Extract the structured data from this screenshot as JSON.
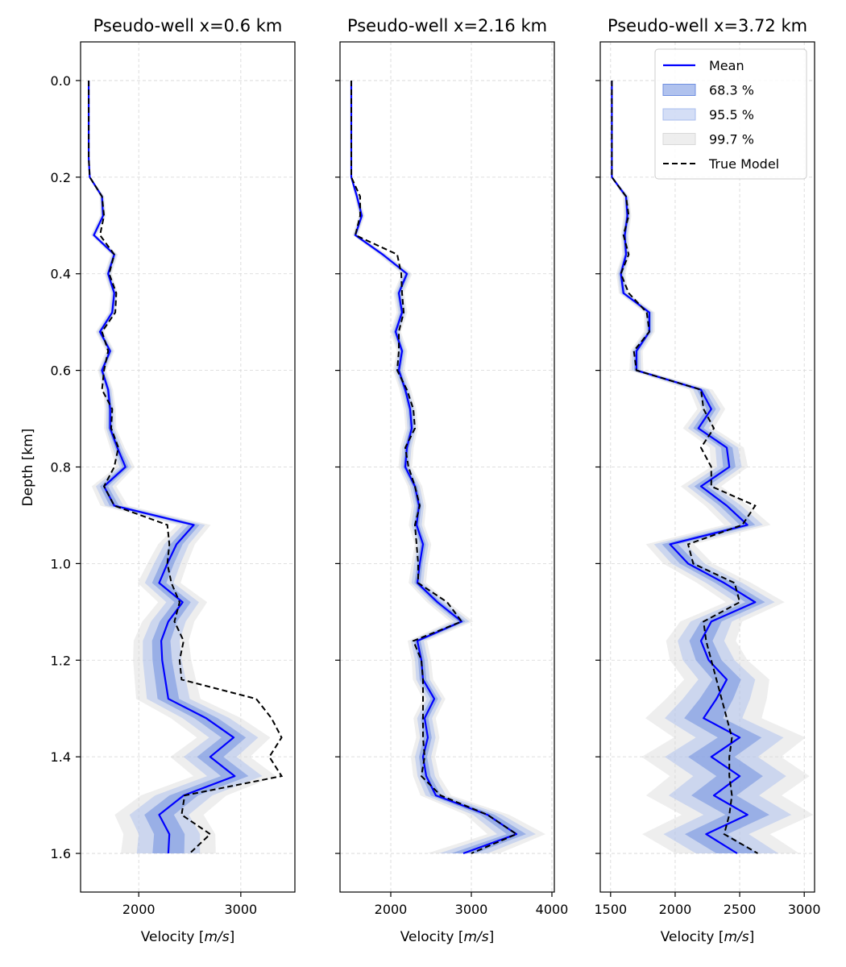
{
  "chart_data": {
    "type": "line",
    "ylabel": "Depth [km]",
    "xlabel": "Velocity [m/s]",
    "xlabel_main": "Velocity [",
    "xlabel_unit": "m/s",
    "xlabel_end": "]",
    "ylim": [
      1.68,
      -0.08
    ],
    "y_ticks": [
      0.0,
      0.2,
      0.4,
      0.6,
      0.8,
      1.0,
      1.2,
      1.4,
      1.6
    ],
    "y_tick_labels": [
      "0.0",
      "0.2",
      "0.4",
      "0.6",
      "0.8",
      "1.0",
      "1.2",
      "1.4",
      "1.6"
    ],
    "grid": true,
    "legend": {
      "placement": "top-right of third panel",
      "entries": [
        {
          "label": "Mean",
          "kind": "line",
          "color": "#0000ff"
        },
        {
          "label": "68.3 %",
          "kind": "band",
          "color": "#6f8fe0",
          "opacity": 0.55
        },
        {
          "label": "95.5 %",
          "kind": "band",
          "color": "#a9bdee",
          "opacity": 0.5
        },
        {
          "label": "99.7 %",
          "kind": "band",
          "color": "#d9d9d9",
          "opacity": 0.45
        },
        {
          "label": "True Model",
          "kind": "dashed",
          "color": "#000000"
        }
      ]
    },
    "panels": [
      {
        "title": "Pseudo-well x=0.6 km",
        "xlim": [
          1430,
          3530
        ],
        "x_ticks": [
          2000,
          3000
        ],
        "x_tick_labels": [
          "2000",
          "3000"
        ],
        "depth": [
          0.0,
          0.04,
          0.08,
          0.12,
          0.16,
          0.2,
          0.24,
          0.28,
          0.32,
          0.36,
          0.4,
          0.44,
          0.48,
          0.52,
          0.56,
          0.6,
          0.64,
          0.68,
          0.72,
          0.76,
          0.8,
          0.84,
          0.88,
          0.92,
          0.96,
          1.0,
          1.04,
          1.08,
          1.12,
          1.16,
          1.2,
          1.24,
          1.28,
          1.32,
          1.36,
          1.4,
          1.44,
          1.48,
          1.52,
          1.56,
          1.6
        ],
        "mean": [
          1510,
          1510,
          1510,
          1510,
          1510,
          1520,
          1640,
          1650,
          1560,
          1760,
          1700,
          1760,
          1740,
          1620,
          1720,
          1640,
          1700,
          1720,
          1720,
          1790,
          1870,
          1660,
          1760,
          2540,
          2370,
          2280,
          2200,
          2430,
          2290,
          2220,
          2230,
          2260,
          2290,
          2660,
          2930,
          2700,
          2940,
          2440,
          2200,
          2300,
          2290
        ],
        "sd": [
          2,
          2,
          2,
          2,
          2,
          3,
          8,
          10,
          10,
          12,
          12,
          12,
          12,
          14,
          14,
          14,
          16,
          18,
          20,
          24,
          30,
          40,
          45,
          55,
          60,
          65,
          70,
          80,
          85,
          90,
          95,
          100,
          105,
          115,
          120,
          130,
          135,
          140,
          145,
          150,
          155
        ],
        "truth": [
          1510,
          1510,
          1510,
          1510,
          1510,
          1520,
          1640,
          1660,
          1620,
          1760,
          1710,
          1780,
          1770,
          1640,
          1700,
          1660,
          1640,
          1740,
          1730,
          1800,
          1760,
          1660,
          1760,
          2280,
          2300,
          2280,
          2320,
          2400,
          2350,
          2440,
          2400,
          2420,
          3150,
          3300,
          3400,
          3280,
          3400,
          2450,
          2420,
          2700,
          2500
        ]
      },
      {
        "title": "Pseudo-well x=2.16 km",
        "xlim": [
          1370,
          4030
        ],
        "x_ticks": [
          2000,
          3000,
          4000
        ],
        "x_tick_labels": [
          "2000",
          "3000",
          "4000"
        ],
        "depth": [
          0.0,
          0.04,
          0.08,
          0.12,
          0.16,
          0.2,
          0.24,
          0.28,
          0.32,
          0.36,
          0.4,
          0.44,
          0.48,
          0.52,
          0.56,
          0.6,
          0.64,
          0.68,
          0.72,
          0.76,
          0.8,
          0.84,
          0.88,
          0.92,
          0.96,
          1.0,
          1.04,
          1.08,
          1.12,
          1.16,
          1.2,
          1.24,
          1.28,
          1.32,
          1.36,
          1.4,
          1.44,
          1.48,
          1.52,
          1.56,
          1.6
        ],
        "mean": [
          1510,
          1510,
          1510,
          1510,
          1510,
          1510,
          1580,
          1640,
          1560,
          1900,
          2200,
          2100,
          2140,
          2060,
          2140,
          2100,
          2180,
          2240,
          2260,
          2200,
          2180,
          2300,
          2350,
          2320,
          2400,
          2360,
          2330,
          2580,
          2880,
          2330,
          2380,
          2400,
          2540,
          2420,
          2460,
          2400,
          2440,
          2560,
          3200,
          3560,
          2900
        ],
        "sd": [
          2,
          2,
          2,
          2,
          2,
          3,
          10,
          12,
          12,
          18,
          22,
          22,
          22,
          22,
          22,
          24,
          24,
          26,
          26,
          28,
          28,
          30,
          30,
          32,
          34,
          34,
          36,
          44,
          48,
          40,
          40,
          42,
          46,
          46,
          48,
          50,
          54,
          64,
          90,
          120,
          150
        ],
        "truth": [
          1510,
          1510,
          1510,
          1510,
          1510,
          1510,
          1620,
          1620,
          1560,
          2080,
          2130,
          2140,
          2160,
          2100,
          2100,
          2080,
          2200,
          2280,
          2300,
          2180,
          2220,
          2300,
          2360,
          2300,
          2320,
          2340,
          2340,
          2700,
          2880,
          2280,
          2380,
          2400,
          2400,
          2400,
          2400,
          2420,
          2380,
          2620,
          3200,
          3560,
          3000
        ]
      },
      {
        "title": "Pseudo-well x=3.72 km",
        "xlim": [
          1420,
          3080
        ],
        "x_ticks": [
          1500,
          2000,
          2500,
          3000
        ],
        "x_tick_labels": [
          "1500",
          "2000",
          "2500",
          "3000"
        ],
        "depth": [
          0.0,
          0.04,
          0.08,
          0.12,
          0.16,
          0.2,
          0.24,
          0.28,
          0.32,
          0.36,
          0.4,
          0.44,
          0.48,
          0.52,
          0.56,
          0.6,
          0.64,
          0.68,
          0.72,
          0.76,
          0.8,
          0.84,
          0.88,
          0.92,
          0.96,
          1.0,
          1.04,
          1.08,
          1.12,
          1.16,
          1.2,
          1.24,
          1.28,
          1.32,
          1.36,
          1.4,
          1.44,
          1.48,
          1.52,
          1.56,
          1.6
        ],
        "mean": [
          1510,
          1510,
          1510,
          1510,
          1510,
          1510,
          1620,
          1630,
          1610,
          1620,
          1580,
          1600,
          1800,
          1800,
          1700,
          1700,
          2200,
          2280,
          2180,
          2400,
          2420,
          2200,
          2400,
          2560,
          1960,
          2100,
          2380,
          2620,
          2280,
          2200,
          2260,
          2400,
          2320,
          2220,
          2500,
          2280,
          2500,
          2300,
          2560,
          2240,
          2480
        ],
        "sd": [
          1,
          1,
          1,
          1,
          1,
          2,
          8,
          10,
          10,
          10,
          12,
          12,
          14,
          14,
          16,
          18,
          30,
          36,
          40,
          44,
          48,
          52,
          56,
          60,
          62,
          64,
          70,
          76,
          80,
          90,
          100,
          110,
          130,
          150,
          170,
          180,
          180,
          175,
          170,
          165,
          160
        ],
        "truth": [
          1510,
          1510,
          1510,
          1510,
          1510,
          1510,
          1620,
          1640,
          1600,
          1640,
          1580,
          1640,
          1780,
          1800,
          1680,
          1700,
          2200,
          2220,
          2300,
          2200,
          2280,
          2280,
          2620,
          2520,
          2100,
          2140,
          2460,
          2500,
          2220,
          2240,
          2280,
          2320,
          2360,
          2400,
          2440,
          2420,
          2420,
          2440,
          2420,
          2380,
          2640
        ]
      }
    ]
  }
}
